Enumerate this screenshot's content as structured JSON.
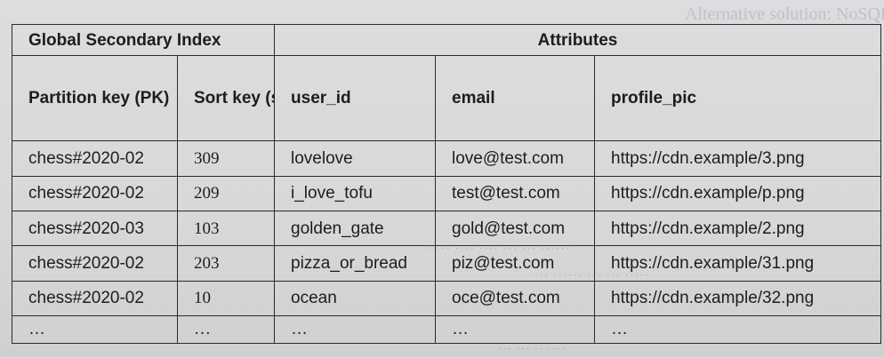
{
  "table": {
    "group_headers": [
      "Global Secondary Index",
      "Attributes"
    ],
    "columns": [
      "Partition key (PK)",
      "Sort key (score)",
      "user_id",
      "email",
      "profile_pic"
    ],
    "rows": [
      [
        "chess#2020-02",
        "309",
        "lovelove",
        "love@test.com",
        "https://cdn.example/3.png"
      ],
      [
        "chess#2020-02",
        "209",
        "i_love_tofu",
        "test@test.com",
        "https://cdn.example/p.png"
      ],
      [
        "chess#2020-03",
        "103",
        "golden_gate",
        "gold@test.com",
        "https://cdn.example/2.png"
      ],
      [
        "chess#2020-02",
        "203",
        "pizza_or_bread",
        "piz@test.com",
        "https://cdn.example/31.png"
      ],
      [
        "chess#2020-02",
        "10",
        "ocean",
        "oce@test.com",
        "https://cdn.example/32.png"
      ],
      [
        "…",
        "…",
        "…",
        "…",
        "…"
      ]
    ]
  }
}
